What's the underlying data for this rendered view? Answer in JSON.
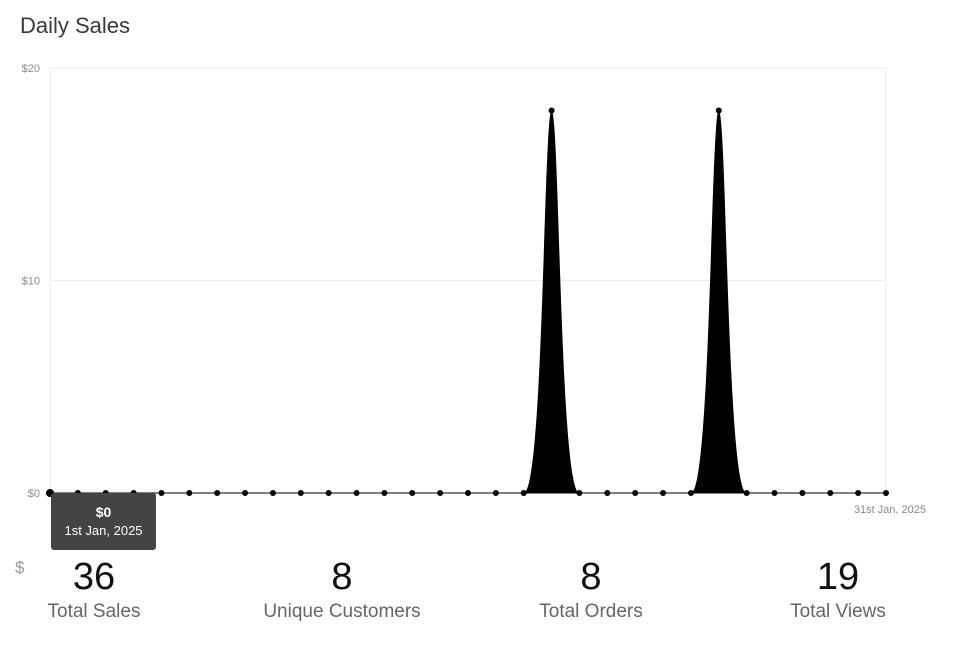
{
  "title": "Daily Sales",
  "chart_data": {
    "type": "area",
    "title": "Daily Sales",
    "x_start": "1st Jan, 2025",
    "x_end": "31st Jan, 2025",
    "x_end_label": "31st Jan, 2025",
    "y_ticks": [
      "$0",
      "$10",
      "$20"
    ],
    "ylim": [
      0,
      20
    ],
    "values": [
      0,
      0,
      0,
      0,
      0,
      0,
      0,
      0,
      0,
      0,
      0,
      0,
      0,
      0,
      0,
      0,
      0,
      0,
      18,
      0,
      0,
      0,
      0,
      0,
      18,
      0,
      0,
      0,
      0,
      0,
      0
    ],
    "grid": true,
    "color": "#000000"
  },
  "tooltip": {
    "value": "$0",
    "date": "1st Jan, 2025"
  },
  "stats": [
    {
      "currency": "$",
      "value": "36",
      "label": "Total Sales"
    },
    {
      "currency": "",
      "value": "8",
      "label": "Unique Customers"
    },
    {
      "currency": "",
      "value": "8",
      "label": "Total Orders"
    },
    {
      "currency": "",
      "value": "19",
      "label": "Total Views"
    }
  ]
}
